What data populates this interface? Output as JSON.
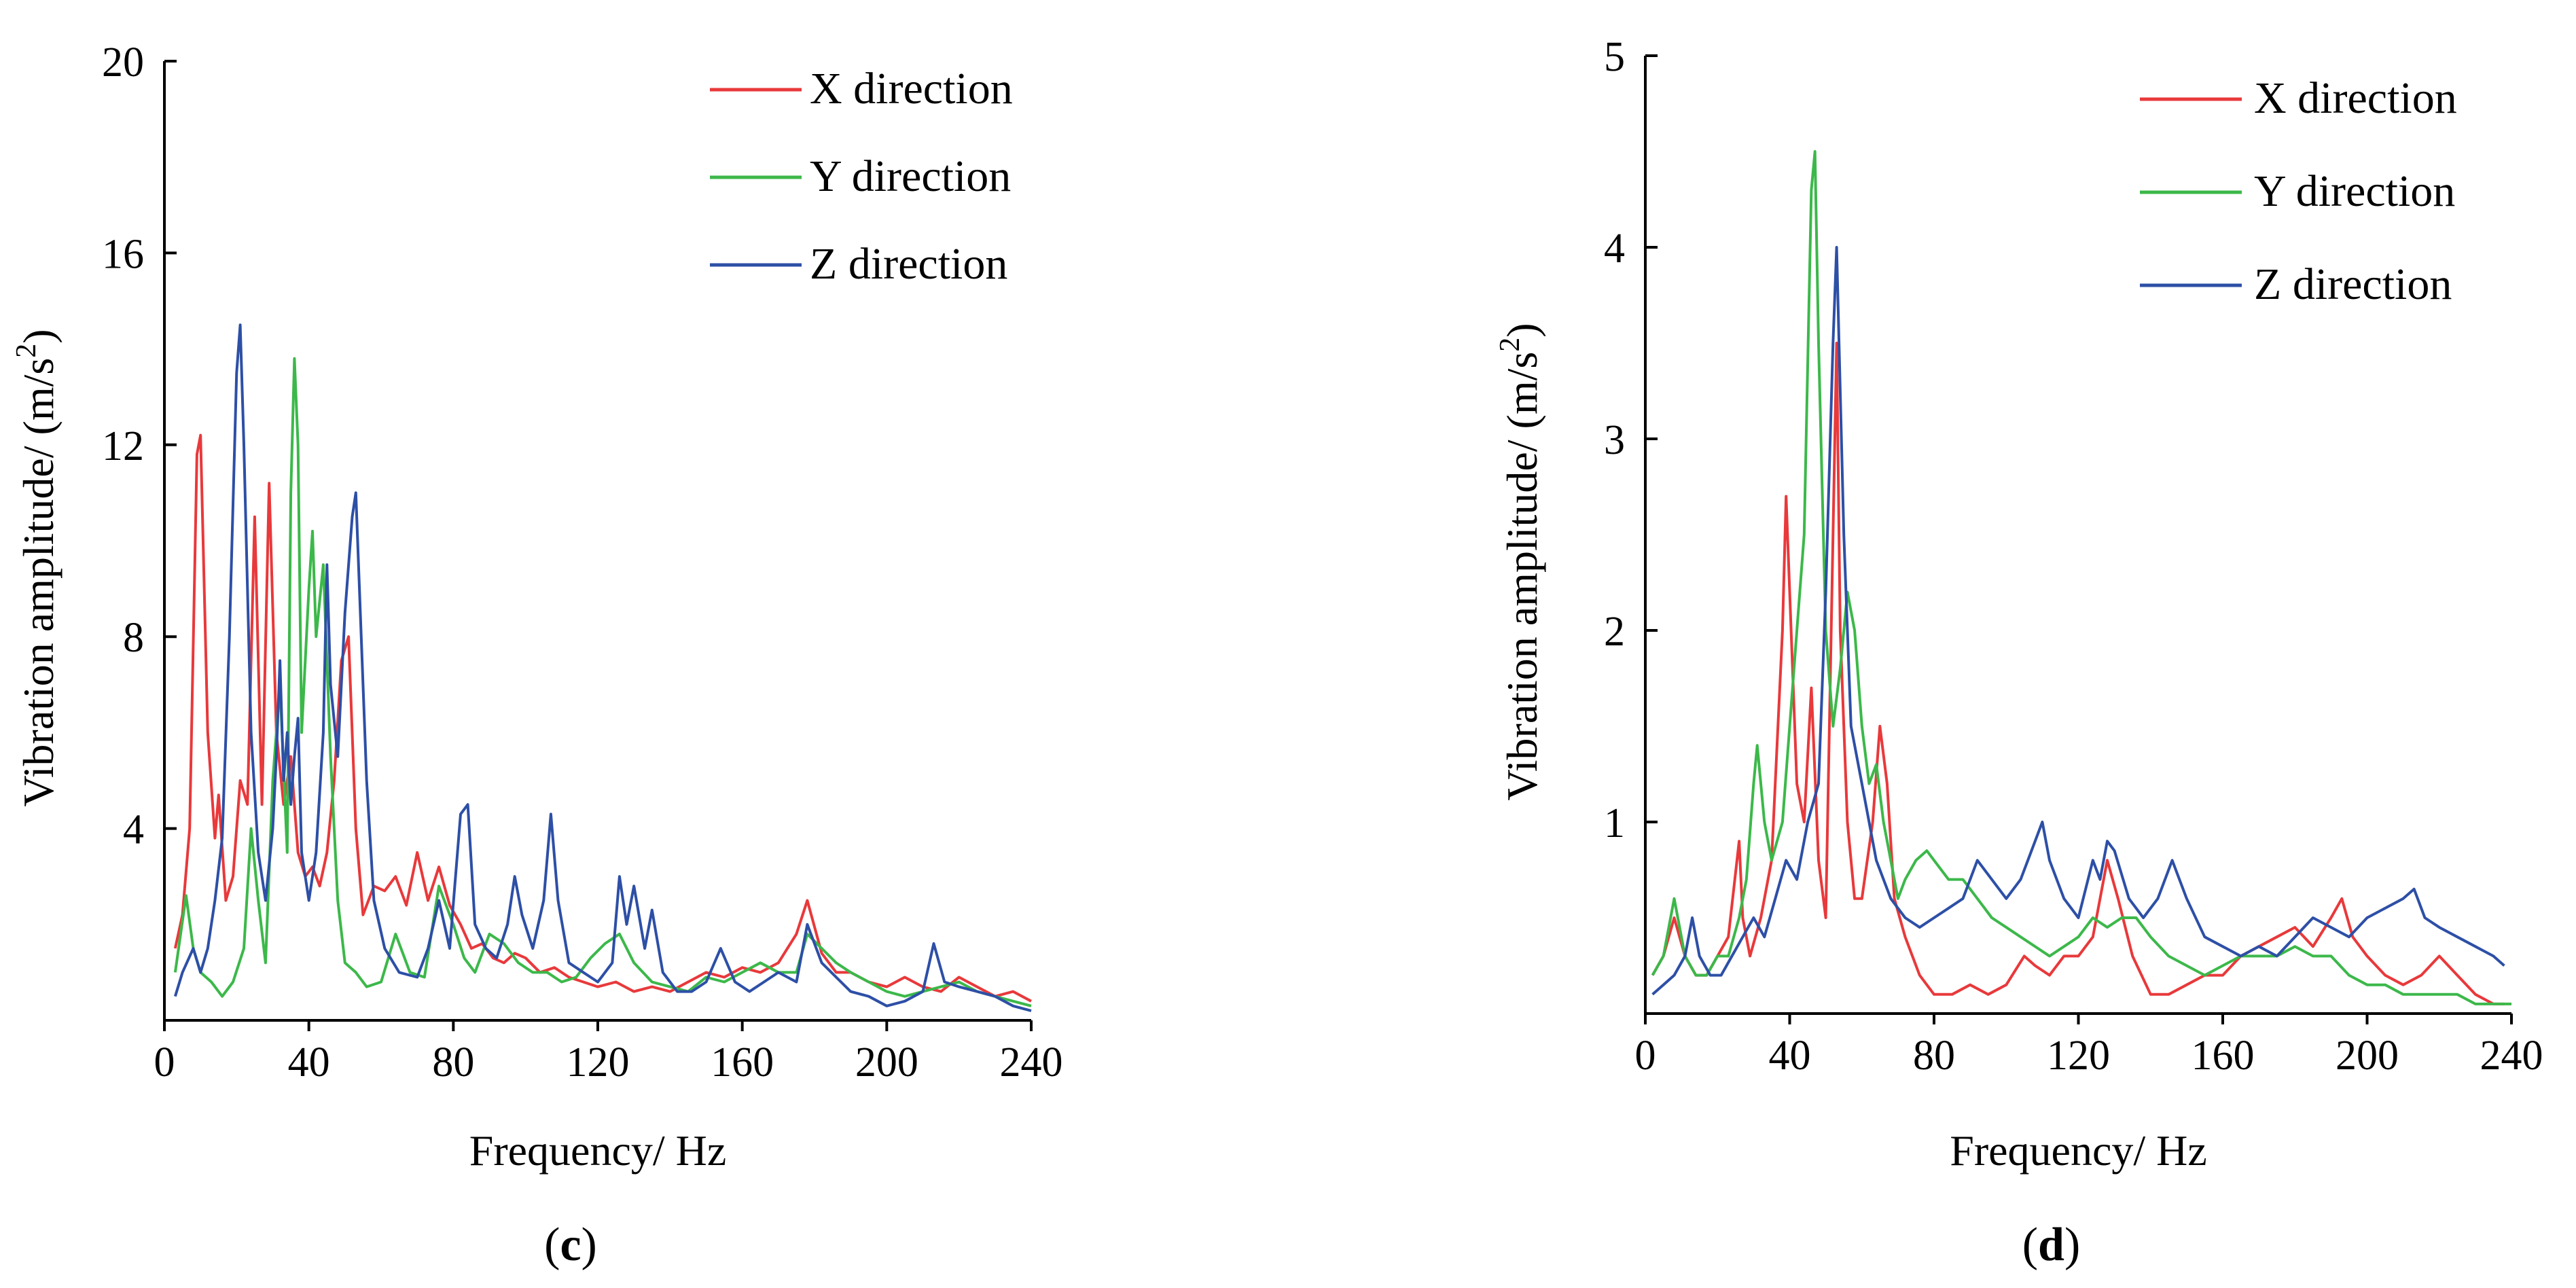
{
  "chart_data": [
    {
      "type": "line",
      "panel_label": "c",
      "title": "",
      "xlabel": "Frequency/ Hz",
      "ylabel": "Vibration amplitude/ (m/s",
      "ylabel_sup": "2",
      "ylabel_suffix": ")",
      "xlim": [
        0,
        240
      ],
      "ylim": [
        0,
        20
      ],
      "xticks": [
        0,
        40,
        80,
        120,
        160,
        200,
        240
      ],
      "yticks": [
        4,
        8,
        12,
        16,
        20
      ],
      "grid": false,
      "legend_position": "top-right",
      "series": [
        {
          "name": "X direction",
          "color": "#e8393b",
          "x": [
            3,
            5,
            7,
            9,
            10,
            12,
            14,
            15,
            17,
            19,
            21,
            23,
            25,
            27,
            29,
            31,
            33,
            35,
            37,
            39,
            41,
            43,
            45,
            47,
            49,
            51,
            53,
            55,
            58,
            61,
            64,
            67,
            70,
            73,
            76,
            79,
            82,
            85,
            88,
            91,
            94,
            97,
            100,
            104,
            108,
            112,
            116,
            120,
            125,
            130,
            135,
            140,
            145,
            150,
            155,
            160,
            165,
            170,
            175,
            178,
            182,
            186,
            190,
            195,
            200,
            205,
            210,
            215,
            220,
            225,
            230,
            235,
            240
          ],
          "y": [
            1.5,
            2.2,
            4.0,
            11.8,
            12.2,
            6.0,
            3.8,
            4.7,
            2.5,
            3.0,
            5.0,
            4.5,
            10.5,
            4.5,
            11.2,
            6.0,
            4.5,
            5.5,
            3.5,
            3.0,
            3.2,
            2.8,
            3.5,
            5.0,
            7.5,
            8.0,
            4.0,
            2.2,
            2.8,
            2.7,
            3.0,
            2.4,
            3.5,
            2.5,
            3.2,
            2.4,
            2.0,
            1.5,
            1.6,
            1.3,
            1.2,
            1.4,
            1.3,
            1.0,
            1.1,
            0.9,
            0.8,
            0.7,
            0.8,
            0.6,
            0.7,
            0.6,
            0.8,
            1.0,
            0.9,
            1.1,
            1.0,
            1.2,
            1.8,
            2.5,
            1.4,
            1.0,
            1.0,
            0.8,
            0.7,
            0.9,
            0.7,
            0.6,
            0.9,
            0.7,
            0.5,
            0.6,
            0.4
          ]
        },
        {
          "name": "Y direction",
          "color": "#3cb84a",
          "x": [
            3,
            6,
            8,
            10,
            13,
            16,
            19,
            22,
            24,
            26,
            28,
            30,
            32,
            34,
            35,
            36,
            37,
            38,
            40,
            41,
            42,
            44,
            46,
            48,
            50,
            53,
            56,
            60,
            64,
            68,
            72,
            76,
            80,
            83,
            86,
            90,
            94,
            98,
            102,
            106,
            110,
            114,
            118,
            122,
            126,
            130,
            135,
            140,
            145,
            150,
            155,
            160,
            165,
            170,
            175,
            178,
            182,
            186,
            190,
            195,
            200,
            205,
            210,
            215,
            220,
            225,
            230,
            235,
            240
          ],
          "y": [
            1.0,
            2.6,
            1.5,
            1.0,
            0.8,
            0.5,
            0.8,
            1.5,
            4.0,
            2.5,
            1.2,
            5.0,
            7.0,
            3.5,
            11.0,
            13.8,
            12.0,
            6.0,
            9.0,
            10.2,
            8.0,
            9.5,
            5.5,
            2.5,
            1.2,
            1.0,
            0.7,
            0.8,
            1.8,
            1.0,
            0.9,
            2.8,
            2.0,
            1.3,
            1.0,
            1.8,
            1.6,
            1.2,
            1.0,
            1.0,
            0.8,
            0.9,
            1.3,
            1.6,
            1.8,
            1.2,
            0.8,
            0.7,
            0.6,
            0.9,
            0.8,
            1.0,
            1.2,
            1.0,
            1.0,
            1.8,
            1.5,
            1.2,
            1.0,
            0.8,
            0.6,
            0.5,
            0.6,
            0.7,
            0.8,
            0.6,
            0.5,
            0.4,
            0.3
          ]
        },
        {
          "name": "Z direction",
          "color": "#2d4fa6",
          "x": [
            3,
            5,
            8,
            10,
            12,
            14,
            16,
            18,
            20,
            21,
            22,
            24,
            26,
            28,
            30,
            31,
            32,
            33,
            34,
            35,
            36,
            37,
            38,
            40,
            42,
            44,
            45,
            46,
            48,
            50,
            52,
            53,
            54,
            56,
            58,
            61,
            65,
            70,
            73,
            76,
            79,
            82,
            84,
            86,
            89,
            92,
            95,
            97,
            99,
            102,
            105,
            107,
            109,
            112,
            116,
            120,
            124,
            126,
            128,
            130,
            133,
            135,
            138,
            142,
            146,
            150,
            154,
            158,
            162,
            166,
            170,
            175,
            178,
            182,
            186,
            190,
            195,
            200,
            205,
            210,
            213,
            216,
            220,
            225,
            230,
            235,
            240
          ],
          "y": [
            0.5,
            1.0,
            1.5,
            1.0,
            1.5,
            2.5,
            3.8,
            8.0,
            13.5,
            14.5,
            12.0,
            6.0,
            3.5,
            2.5,
            4.0,
            5.5,
            7.5,
            5.0,
            6.0,
            4.5,
            5.5,
            6.3,
            3.5,
            2.5,
            3.5,
            6.0,
            9.5,
            7.0,
            5.5,
            8.5,
            10.5,
            11.0,
            9.0,
            5.0,
            2.5,
            1.5,
            1.0,
            0.9,
            1.5,
            2.5,
            1.5,
            4.3,
            4.5,
            2.0,
            1.5,
            1.3,
            2.0,
            3.0,
            2.2,
            1.5,
            2.5,
            4.3,
            2.5,
            1.2,
            1.0,
            0.8,
            1.2,
            3.0,
            2.0,
            2.8,
            1.5,
            2.3,
            1.0,
            0.6,
            0.6,
            0.8,
            1.5,
            0.8,
            0.6,
            0.8,
            1.0,
            0.8,
            2.0,
            1.2,
            0.9,
            0.6,
            0.5,
            0.3,
            0.4,
            0.6,
            1.6,
            0.8,
            0.7,
            0.6,
            0.5,
            0.3,
            0.2
          ]
        }
      ]
    },
    {
      "type": "line",
      "panel_label": "d",
      "title": "",
      "xlabel": "Frequency/ Hz",
      "ylabel": "Vibration amplitude/ (m/s",
      "ylabel_sup": "2",
      "ylabel_suffix": ")",
      "xlim": [
        0,
        240
      ],
      "ylim": [
        0,
        5
      ],
      "xticks": [
        0,
        40,
        80,
        120,
        160,
        200,
        240
      ],
      "yticks": [
        1,
        2,
        3,
        4,
        5
      ],
      "grid": false,
      "legend_position": "top-right",
      "series": [
        {
          "name": "X direction",
          "color": "#e8393b",
          "x": [
            2,
            5,
            8,
            11,
            14,
            17,
            20,
            23,
            26,
            27,
            29,
            32,
            35,
            38,
            39,
            40,
            42,
            44,
            46,
            48,
            50,
            52,
            53,
            54,
            56,
            58,
            60,
            63,
            65,
            67,
            69,
            72,
            76,
            80,
            85,
            90,
            95,
            100,
            105,
            108,
            112,
            116,
            120,
            124,
            128,
            131,
            135,
            140,
            145,
            150,
            155,
            160,
            165,
            170,
            175,
            180,
            185,
            190,
            193,
            196,
            200,
            205,
            210,
            215,
            220,
            225,
            230,
            235,
            238
          ],
          "y": [
            0.2,
            0.3,
            0.5,
            0.3,
            0.2,
            0.2,
            0.3,
            0.4,
            0.9,
            0.5,
            0.3,
            0.5,
            0.8,
            2.0,
            2.7,
            2.2,
            1.2,
            1.0,
            1.7,
            0.8,
            0.5,
            2.5,
            3.5,
            2.0,
            1.0,
            0.6,
            0.6,
            1.0,
            1.5,
            1.2,
            0.6,
            0.4,
            0.2,
            0.1,
            0.1,
            0.15,
            0.1,
            0.15,
            0.3,
            0.25,
            0.2,
            0.3,
            0.3,
            0.4,
            0.8,
            0.6,
            0.3,
            0.1,
            0.1,
            0.15,
            0.2,
            0.2,
            0.3,
            0.35,
            0.4,
            0.45,
            0.35,
            0.5,
            0.6,
            0.4,
            0.3,
            0.2,
            0.15,
            0.2,
            0.3,
            0.2,
            0.1,
            0.05,
            0.05
          ]
        },
        {
          "name": "Y direction",
          "color": "#3cb84a",
          "x": [
            2,
            5,
            8,
            11,
            14,
            17,
            20,
            23,
            26,
            28,
            30,
            31,
            33,
            35,
            38,
            40,
            42,
            44,
            46,
            47,
            48,
            50,
            52,
            54,
            56,
            58,
            60,
            62,
            64,
            66,
            68,
            70,
            72,
            75,
            78,
            80,
            84,
            88,
            92,
            96,
            100,
            104,
            108,
            112,
            116,
            120,
            124,
            128,
            132,
            136,
            140,
            145,
            150,
            155,
            160,
            165,
            170,
            175,
            180,
            185,
            190,
            195,
            200,
            205,
            210,
            215,
            220,
            225,
            230,
            235,
            240
          ],
          "y": [
            0.2,
            0.3,
            0.6,
            0.3,
            0.2,
            0.2,
            0.3,
            0.3,
            0.5,
            0.7,
            1.2,
            1.4,
            1.0,
            0.8,
            1.0,
            1.5,
            2.0,
            2.5,
            4.3,
            4.5,
            3.5,
            2.0,
            1.5,
            1.8,
            2.2,
            2.0,
            1.5,
            1.2,
            1.3,
            1.0,
            0.8,
            0.6,
            0.7,
            0.8,
            0.85,
            0.8,
            0.7,
            0.7,
            0.6,
            0.5,
            0.45,
            0.4,
            0.35,
            0.3,
            0.35,
            0.4,
            0.5,
            0.45,
            0.5,
            0.5,
            0.4,
            0.3,
            0.25,
            0.2,
            0.25,
            0.3,
            0.3,
            0.3,
            0.35,
            0.3,
            0.3,
            0.2,
            0.15,
            0.15,
            0.1,
            0.1,
            0.1,
            0.1,
            0.05,
            0.05,
            0.05
          ]
        },
        {
          "name": "Z direction",
          "color": "#2d4fa6",
          "x": [
            2,
            5,
            8,
            11,
            13,
            15,
            18,
            21,
            24,
            27,
            30,
            33,
            36,
            39,
            42,
            45,
            48,
            50,
            52,
            53,
            55,
            57,
            60,
            64,
            68,
            72,
            76,
            80,
            84,
            88,
            92,
            96,
            100,
            104,
            108,
            110,
            112,
            116,
            120,
            124,
            126,
            128,
            130,
            134,
            138,
            142,
            146,
            150,
            155,
            160,
            165,
            170,
            175,
            180,
            185,
            190,
            195,
            200,
            205,
            210,
            213,
            216,
            220,
            225,
            230,
            235,
            238
          ],
          "y": [
            0.1,
            0.15,
            0.2,
            0.3,
            0.5,
            0.3,
            0.2,
            0.2,
            0.3,
            0.4,
            0.5,
            0.4,
            0.6,
            0.8,
            0.7,
            1.0,
            1.2,
            2.2,
            3.5,
            4.0,
            2.5,
            1.5,
            1.2,
            0.8,
            0.6,
            0.5,
            0.45,
            0.5,
            0.55,
            0.6,
            0.8,
            0.7,
            0.6,
            0.7,
            0.9,
            1.0,
            0.8,
            0.6,
            0.5,
            0.8,
            0.7,
            0.9,
            0.85,
            0.6,
            0.5,
            0.6,
            0.8,
            0.6,
            0.4,
            0.35,
            0.3,
            0.35,
            0.3,
            0.4,
            0.5,
            0.45,
            0.4,
            0.5,
            0.55,
            0.6,
            0.65,
            0.5,
            0.45,
            0.4,
            0.35,
            0.3,
            0.25
          ]
        }
      ]
    }
  ]
}
